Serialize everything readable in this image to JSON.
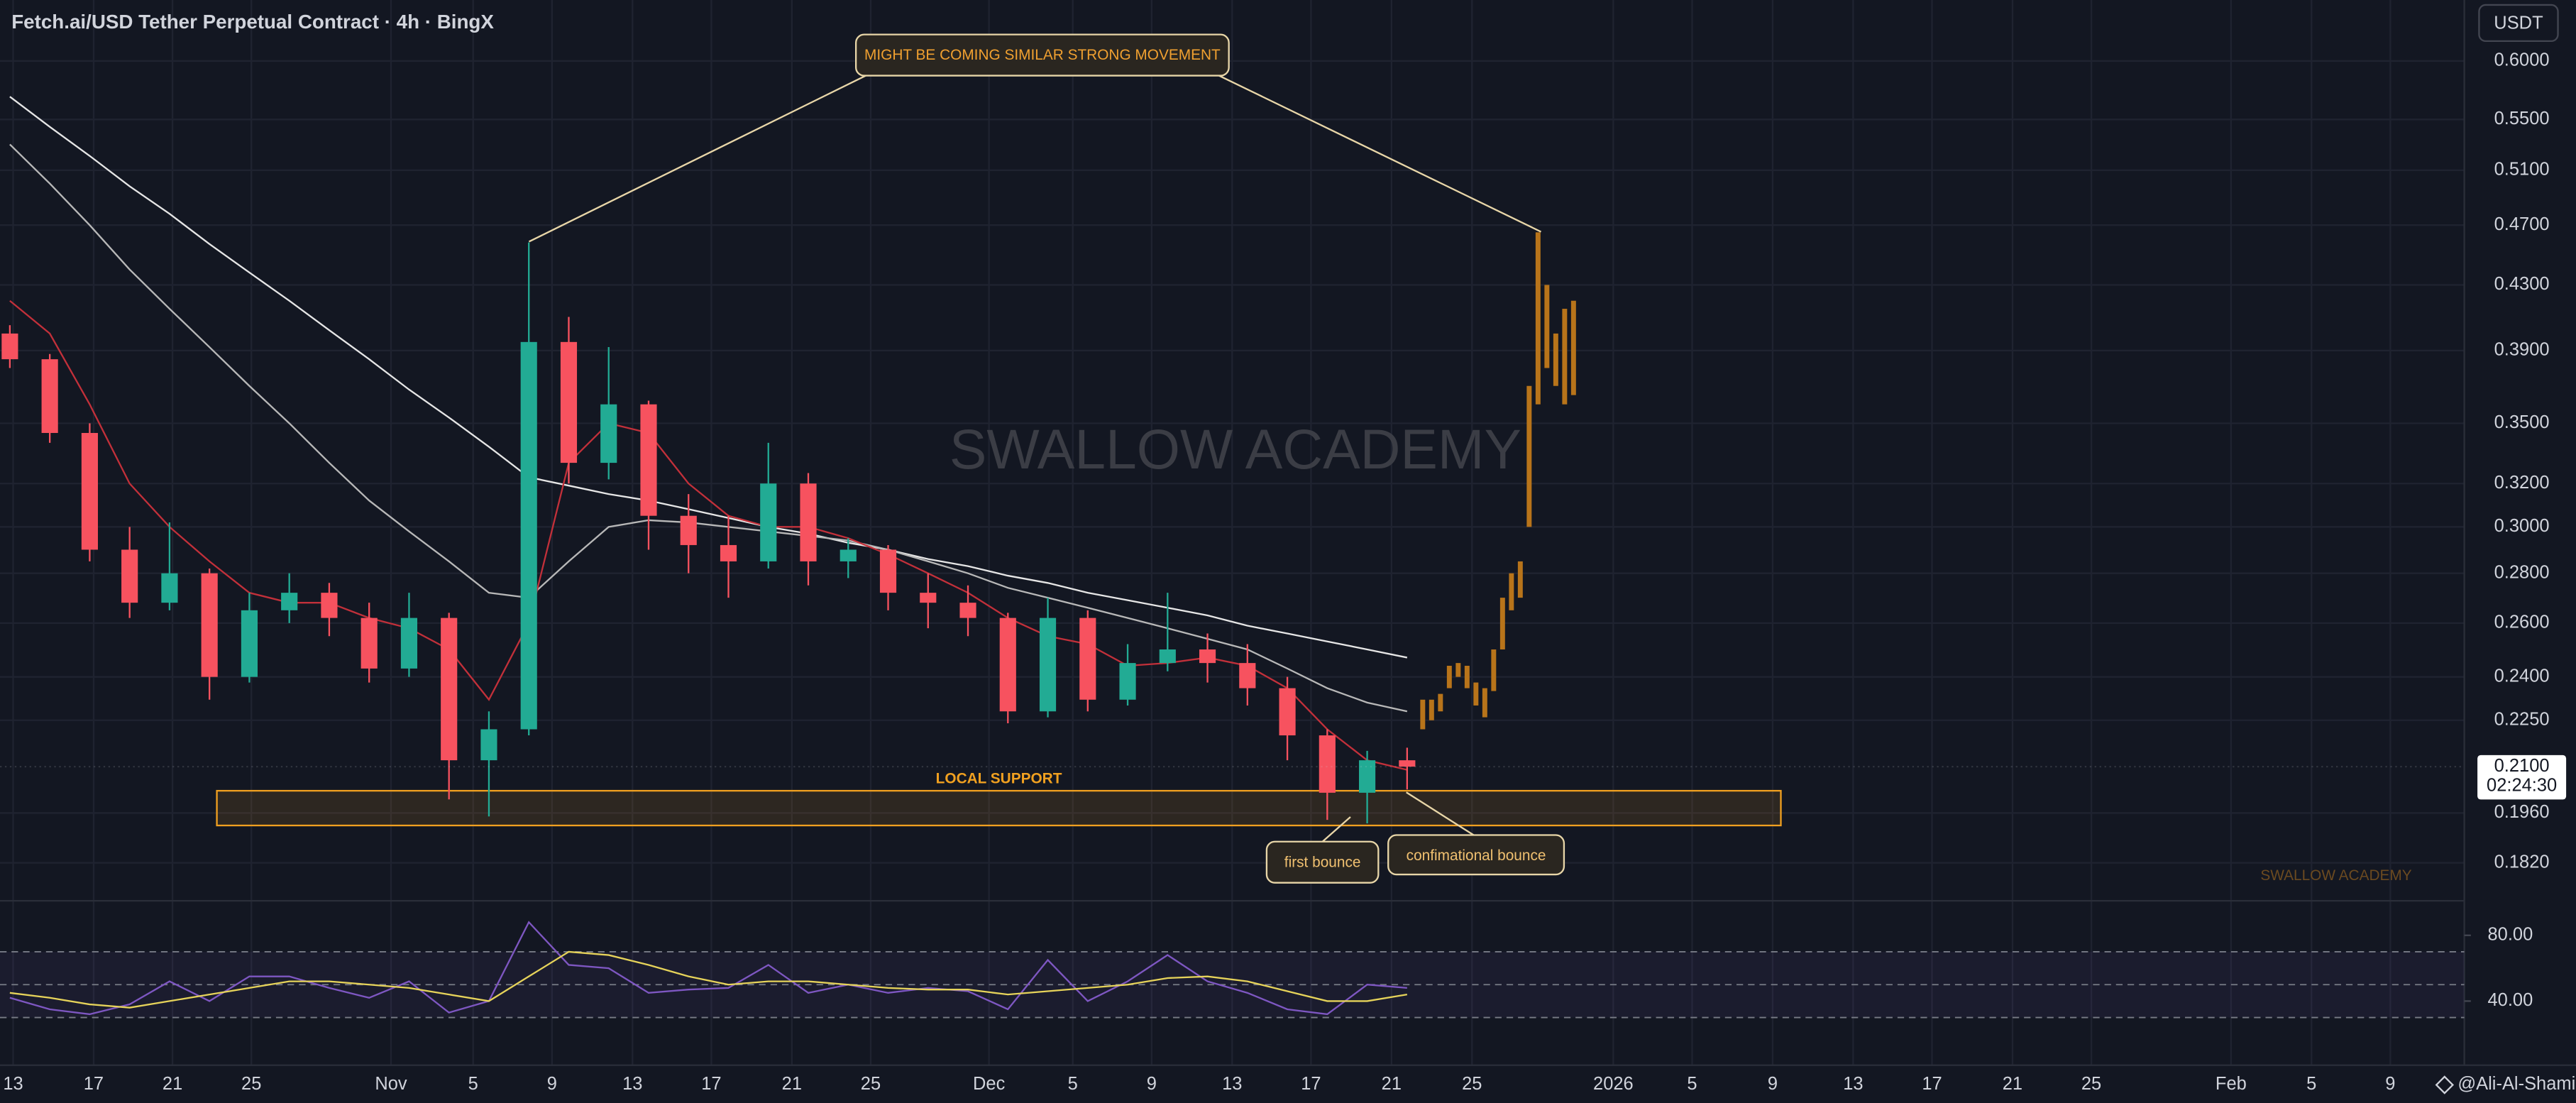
{
  "chart_data": [
    {
      "type": "candlestick",
      "title": "Fetch.ai/USD Tether Perpetual Contract · 4h · BingX",
      "currency": "USDT",
      "watermark": "SWALLOW ACADEMY",
      "signature": "SWALLOW ACADEMY",
      "author": "@Ali-Al-Shami",
      "log_scale": true,
      "grid": true,
      "ylim": [
        0.172,
        0.657
      ],
      "yticks": [
        {
          "value": 0.6,
          "label": "0.6000"
        },
        {
          "value": 0.55,
          "label": "0.5500"
        },
        {
          "value": 0.51,
          "label": "0.5100"
        },
        {
          "value": 0.47,
          "label": "0.4700"
        },
        {
          "value": 0.43,
          "label": "0.4300"
        },
        {
          "value": 0.39,
          "label": "0.3900"
        },
        {
          "value": 0.35,
          "label": "0.3500"
        },
        {
          "value": 0.32,
          "label": "0.3200"
        },
        {
          "value": 0.3,
          "label": "0.3000"
        },
        {
          "value": 0.28,
          "label": "0.2800"
        },
        {
          "value": 0.26,
          "label": "0.2600"
        },
        {
          "value": 0.24,
          "label": "0.2400"
        },
        {
          "value": 0.225,
          "label": "0.2250"
        },
        {
          "value": 0.196,
          "label": "0.1960"
        },
        {
          "value": 0.182,
          "label": "0.1820"
        }
      ],
      "last_price": {
        "value": 0.21,
        "label": "0.2100"
      },
      "countdown": "02:24:30",
      "xticks": [
        "13",
        "17",
        "21",
        "25",
        "Nov",
        "5",
        "9",
        "13",
        "17",
        "21",
        "25",
        "Dec",
        "5",
        "9",
        "13",
        "17",
        "21",
        "25",
        "2026",
        "5",
        "9",
        "13",
        "17",
        "21",
        "25",
        "Feb",
        "5",
        "9"
      ],
      "up_color": "#22ab94",
      "down_color": "#f7525f",
      "open": [
        0.4,
        0.385,
        0.345,
        0.29,
        0.268,
        0.28,
        0.24,
        0.265,
        0.272,
        0.262,
        0.243,
        0.262,
        0.212,
        0.222,
        0.395,
        0.33,
        0.36,
        0.305,
        0.292,
        0.285,
        0.32,
        0.285,
        0.29,
        0.272,
        0.268,
        0.262,
        0.228,
        0.262,
        0.232,
        0.245,
        0.25,
        0.245,
        0.236,
        0.22,
        0.202,
        0.212
      ],
      "high": [
        0.405,
        0.388,
        0.35,
        0.3,
        0.302,
        0.282,
        0.272,
        0.28,
        0.276,
        0.268,
        0.272,
        0.264,
        0.228,
        0.458,
        0.41,
        0.392,
        0.362,
        0.315,
        0.305,
        0.34,
        0.325,
        0.295,
        0.292,
        0.28,
        0.275,
        0.264,
        0.27,
        0.265,
        0.252,
        0.272,
        0.256,
        0.252,
        0.24,
        0.222,
        0.215,
        0.216
      ],
      "low": [
        0.38,
        0.34,
        0.285,
        0.262,
        0.265,
        0.232,
        0.238,
        0.26,
        0.255,
        0.238,
        0.24,
        0.2,
        0.195,
        0.22,
        0.32,
        0.322,
        0.29,
        0.28,
        0.27,
        0.282,
        0.275,
        0.278,
        0.265,
        0.258,
        0.255,
        0.224,
        0.226,
        0.228,
        0.23,
        0.242,
        0.238,
        0.23,
        0.212,
        0.194,
        0.193,
        0.203
      ],
      "close": [
        0.385,
        0.345,
        0.29,
        0.268,
        0.28,
        0.24,
        0.265,
        0.272,
        0.262,
        0.243,
        0.262,
        0.212,
        0.222,
        0.395,
        0.33,
        0.36,
        0.305,
        0.292,
        0.285,
        0.32,
        0.285,
        0.29,
        0.272,
        0.268,
        0.262,
        0.228,
        0.262,
        0.232,
        0.245,
        0.25,
        0.245,
        0.236,
        0.22,
        0.202,
        0.212,
        0.21
      ],
      "lines": [
        {
          "color": "#e6e6e6",
          "values": [
            0.569,
            0.544,
            0.521,
            0.498,
            0.478,
            0.457,
            0.438,
            0.42,
            0.402,
            0.385,
            0.368,
            0.353,
            0.338,
            0.323,
            0.319,
            0.315,
            0.312,
            0.308,
            0.304,
            0.3,
            0.297,
            0.293,
            0.29,
            0.286,
            0.283,
            0.279,
            0.276,
            0.272,
            0.269,
            0.266,
            0.263,
            0.259,
            0.256,
            0.253,
            0.25,
            0.247
          ]
        },
        {
          "color": "#b8b8b8",
          "values": [
            0.53,
            0.5,
            0.47,
            0.44,
            0.415,
            0.392,
            0.37,
            0.35,
            0.33,
            0.312,
            0.298,
            0.285,
            0.272,
            0.27,
            0.285,
            0.3,
            0.303,
            0.302,
            0.3,
            0.298,
            0.296,
            0.294,
            0.29,
            0.285,
            0.28,
            0.274,
            0.27,
            0.266,
            0.262,
            0.258,
            0.254,
            0.25,
            0.243,
            0.236,
            0.231,
            0.228
          ]
        },
        {
          "color": "#c2303a",
          "values": [
            0.42,
            0.4,
            0.36,
            0.32,
            0.3,
            0.285,
            0.272,
            0.268,
            0.268,
            0.262,
            0.258,
            0.25,
            0.232,
            0.26,
            0.33,
            0.35,
            0.345,
            0.32,
            0.305,
            0.3,
            0.3,
            0.295,
            0.288,
            0.28,
            0.272,
            0.262,
            0.255,
            0.252,
            0.244,
            0.245,
            0.247,
            0.244,
            0.236,
            0.222,
            0.212,
            0.209
          ]
        }
      ],
      "projection": {
        "color": "#b8741a",
        "ranges": [
          [
            0.222,
            0.232
          ],
          [
            0.225,
            0.232
          ],
          [
            0.228,
            0.234
          ],
          [
            0.236,
            0.244
          ],
          [
            0.24,
            0.245
          ],
          [
            0.236,
            0.244
          ],
          [
            0.23,
            0.238
          ],
          [
            0.226,
            0.236
          ],
          [
            0.235,
            0.25
          ],
          [
            0.25,
            0.27
          ],
          [
            0.265,
            0.28
          ],
          [
            0.27,
            0.285
          ],
          [
            0.3,
            0.37
          ],
          [
            0.36,
            0.465
          ],
          [
            0.38,
            0.43
          ],
          [
            0.37,
            0.4
          ],
          [
            0.36,
            0.415
          ],
          [
            0.365,
            0.42
          ]
        ]
      },
      "support_zone": {
        "label": "LOCAL SUPPORT",
        "range": [
          0.1924,
          0.2026
        ],
        "color": "#f0a020"
      },
      "annotations": [
        "MIGHT BE COMING SIMILAR STRONG MOVEMENT",
        "first bounce",
        "confimational bounce"
      ]
    },
    {
      "type": "line",
      "ylim": [
        7,
        97
      ],
      "yticks": [
        {
          "value": 80,
          "label": "80.00"
        },
        {
          "value": 40,
          "label": "40.00"
        }
      ],
      "bands": [
        30,
        50,
        70
      ],
      "series": [
        {
          "color": "#7e57c2",
          "values": [
            42,
            35,
            32,
            38,
            52,
            40,
            55,
            55,
            48,
            42,
            52,
            33,
            40,
            88,
            62,
            60,
            45,
            47,
            48,
            62,
            45,
            50,
            45,
            48,
            46,
            35,
            65,
            40,
            52,
            68,
            52,
            45,
            35,
            32,
            50,
            48
          ]
        },
        {
          "color": "#e6d35a",
          "values": [
            45,
            42,
            38,
            36,
            40,
            44,
            48,
            52,
            52,
            50,
            48,
            44,
            40,
            55,
            70,
            68,
            62,
            55,
            50,
            52,
            52,
            50,
            48,
            47,
            47,
            44,
            46,
            48,
            50,
            54,
            55,
            52,
            46,
            40,
            40,
            44
          ]
        }
      ]
    }
  ]
}
